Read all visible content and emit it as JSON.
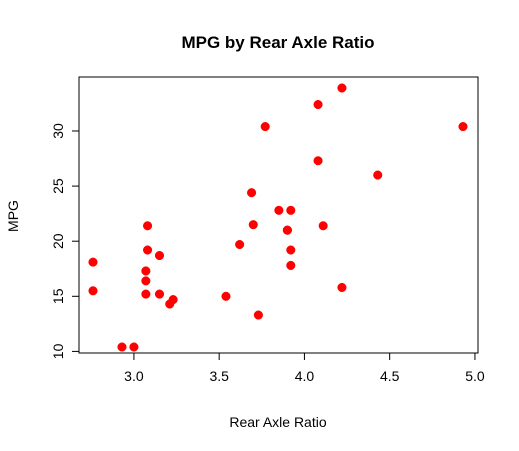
{
  "chart_data": {
    "type": "scatter",
    "title": "MPG by Rear Axle Ratio",
    "xlabel": "Rear Axle Ratio",
    "ylabel": "MPG",
    "xlim": [
      2.76,
      4.93
    ],
    "ylim": [
      10.4,
      33.9
    ],
    "xticks": [
      "3.0",
      "3.5",
      "4.0",
      "4.5",
      "5.0"
    ],
    "yticks": [
      "10",
      "15",
      "20",
      "25",
      "30"
    ],
    "grid": false,
    "legend": "none",
    "marker_color": "#ff0000",
    "series": [
      {
        "points": [
          {
            "x": 3.9,
            "y": 21.0
          },
          {
            "x": 3.9,
            "y": 21.0
          },
          {
            "x": 3.85,
            "y": 22.8
          },
          {
            "x": 3.08,
            "y": 21.4
          },
          {
            "x": 3.15,
            "y": 18.7
          },
          {
            "x": 2.76,
            "y": 18.1
          },
          {
            "x": 3.21,
            "y": 14.3
          },
          {
            "x": 3.69,
            "y": 24.4
          },
          {
            "x": 3.92,
            "y": 22.8
          },
          {
            "x": 3.92,
            "y": 19.2
          },
          {
            "x": 3.92,
            "y": 17.8
          },
          {
            "x": 3.07,
            "y": 16.4
          },
          {
            "x": 3.07,
            "y": 17.3
          },
          {
            "x": 3.07,
            "y": 15.2
          },
          {
            "x": 2.93,
            "y": 10.4
          },
          {
            "x": 3.0,
            "y": 10.4
          },
          {
            "x": 3.23,
            "y": 14.7
          },
          {
            "x": 4.08,
            "y": 32.4
          },
          {
            "x": 4.93,
            "y": 30.4
          },
          {
            "x": 4.22,
            "y": 33.9
          },
          {
            "x": 3.7,
            "y": 21.5
          },
          {
            "x": 2.76,
            "y": 15.5
          },
          {
            "x": 3.15,
            "y": 15.2
          },
          {
            "x": 3.73,
            "y": 13.3
          },
          {
            "x": 3.08,
            "y": 19.2
          },
          {
            "x": 4.08,
            "y": 27.3
          },
          {
            "x": 4.43,
            "y": 26.0
          },
          {
            "x": 3.77,
            "y": 30.4
          },
          {
            "x": 4.22,
            "y": 15.8
          },
          {
            "x": 3.62,
            "y": 19.7
          },
          {
            "x": 3.54,
            "y": 15.0
          },
          {
            "x": 4.11,
            "y": 21.4
          }
        ]
      }
    ]
  }
}
